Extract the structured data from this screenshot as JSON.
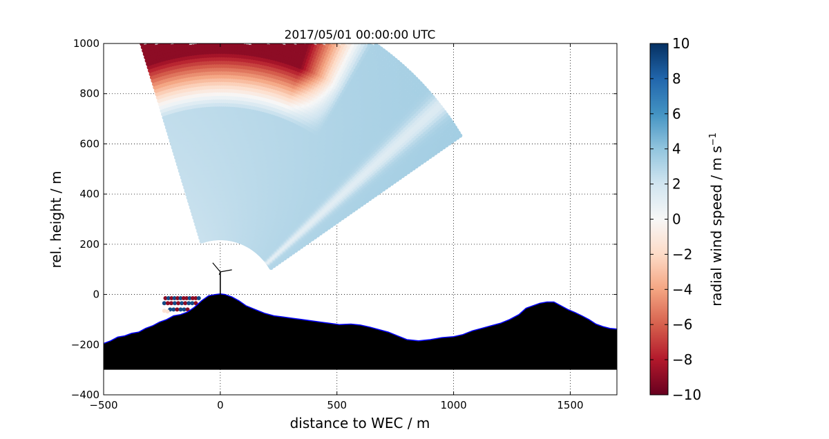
{
  "chart_data": {
    "type": "scatter",
    "title": "2017/05/01 00:00:00 UTC",
    "xlabel": "distance to WEC / m",
    "ylabel": "rel. height / m",
    "xlim": [
      -500,
      1700
    ],
    "ylim": [
      -400,
      1000
    ],
    "xticks": [
      -500,
      0,
      500,
      1000,
      1500
    ],
    "yticks": [
      -400,
      -200,
      0,
      200,
      400,
      600,
      800,
      1000
    ],
    "xtick_labels": [
      "−500",
      "0",
      "500",
      "1000",
      "1500"
    ],
    "ytick_labels": [
      "−400",
      "−200",
      "0",
      "200",
      "400",
      "600",
      "800",
      "1000"
    ],
    "grid": true,
    "colorbar": {
      "label": "radial wind speed / m s",
      "label_superscript": "−1",
      "range": [
        -10,
        10
      ],
      "ticks": [
        10,
        8,
        6,
        4,
        2,
        0,
        -2,
        -4,
        -6,
        -8,
        -10
      ],
      "tick_labels": [
        "10",
        "8",
        "6",
        "4",
        "2",
        "0",
        "−2",
        "−4",
        "−6",
        "−8",
        "−10"
      ],
      "colormap": "RdBu"
    },
    "scan": {
      "origin": [
        0,
        0
      ],
      "azimuth_start_deg": 33,
      "azimuth_end_deg": 108,
      "range_min_m": 260,
      "range_max_m": 1230,
      "typical_radial_wind": 2.5,
      "shear_band_center_deg": 40,
      "shear_band_value": 0.5,
      "top_reversal_min_deg": 58,
      "top_reversal_min_range_m": 780,
      "top_reversal_peak": -9
    },
    "terrain": {
      "x": [
        -500,
        -470,
        -440,
        -410,
        -380,
        -350,
        -320,
        -290,
        -260,
        -230,
        -200,
        -170,
        -140,
        -110,
        -80,
        -50,
        -20,
        0,
        20,
        50,
        80,
        110,
        150,
        190,
        230,
        270,
        310,
        350,
        390,
        430,
        470,
        510,
        560,
        600,
        640,
        680,
        720,
        760,
        800,
        850,
        900,
        950,
        1000,
        1040,
        1080,
        1120,
        1160,
        1200,
        1240,
        1280,
        1310,
        1340,
        1370,
        1400,
        1430,
        1460,
        1490,
        1520,
        1550,
        1580,
        1610,
        1640,
        1670,
        1700
      ],
      "y": [
        -195,
        -185,
        -170,
        -165,
        -155,
        -150,
        -135,
        -125,
        -110,
        -100,
        -85,
        -80,
        -70,
        -50,
        -25,
        -5,
        0,
        2,
        0,
        -10,
        -25,
        -45,
        -60,
        -75,
        -85,
        -90,
        -95,
        -100,
        -105,
        -110,
        -115,
        -120,
        -118,
        -122,
        -130,
        -140,
        -150,
        -165,
        -180,
        -185,
        -180,
        -172,
        -168,
        -160,
        -145,
        -135,
        -125,
        -115,
        -100,
        -80,
        -55,
        -45,
        -35,
        -30,
        -30,
        -45,
        -60,
        -72,
        -85,
        -100,
        -118,
        -128,
        -135,
        -138
      ],
      "base": -300,
      "color": "#000000",
      "edge_color": "#0000ff"
    },
    "turbine": {
      "x": 0,
      "hub_height": 90
    },
    "near_ground_points": [
      {
        "x": -235,
        "y": -15,
        "v": -9
      },
      {
        "x": -222,
        "y": -15,
        "v": 9
      },
      {
        "x": -209,
        "y": -15,
        "v": -9
      },
      {
        "x": -196,
        "y": -15,
        "v": 9
      },
      {
        "x": -183,
        "y": -15,
        "v": -9
      },
      {
        "x": -170,
        "y": -15,
        "v": 9
      },
      {
        "x": -157,
        "y": -15,
        "v": -9
      },
      {
        "x": -144,
        "y": -15,
        "v": -9
      },
      {
        "x": -131,
        "y": -15,
        "v": 9
      },
      {
        "x": -118,
        "y": -15,
        "v": -9
      },
      {
        "x": -105,
        "y": -15,
        "v": -9
      },
      {
        "x": -92,
        "y": -15,
        "v": 9
      },
      {
        "x": -240,
        "y": -35,
        "v": 9
      },
      {
        "x": -225,
        "y": -35,
        "v": -9
      },
      {
        "x": -210,
        "y": -35,
        "v": -9
      },
      {
        "x": -195,
        "y": -35,
        "v": 9
      },
      {
        "x": -180,
        "y": -35,
        "v": -9
      },
      {
        "x": -165,
        "y": -35,
        "v": 9
      },
      {
        "x": -150,
        "y": -35,
        "v": -9
      },
      {
        "x": -135,
        "y": -35,
        "v": 9
      },
      {
        "x": -120,
        "y": -35,
        "v": 9
      },
      {
        "x": -105,
        "y": -35,
        "v": -9
      },
      {
        "x": -215,
        "y": -60,
        "v": 9
      },
      {
        "x": -200,
        "y": -60,
        "v": 9
      },
      {
        "x": -185,
        "y": -60,
        "v": -9
      },
      {
        "x": -170,
        "y": -60,
        "v": 9
      },
      {
        "x": -155,
        "y": -60,
        "v": 9
      },
      {
        "x": -140,
        "y": -60,
        "v": -9
      }
    ],
    "faded_points": [
      {
        "x": -240,
        "y": -65,
        "v": -1.5
      },
      {
        "x": -226,
        "y": -68,
        "v": -1.5
      }
    ]
  }
}
